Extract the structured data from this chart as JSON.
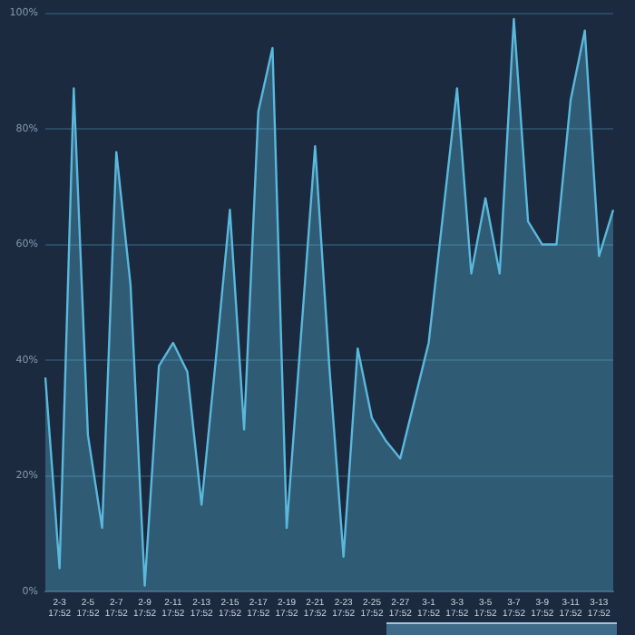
{
  "chart_data": {
    "type": "area",
    "categories": [
      null,
      "2-3\n17:52",
      null,
      "2-5\n17:52",
      null,
      "2-7\n17:52",
      null,
      "2-9\n17:52",
      null,
      "2-11\n17:52",
      null,
      "2-13\n17:52",
      null,
      "2-15\n17:52",
      null,
      "2-17\n17:52",
      null,
      "2-19\n17:52",
      null,
      "2-21\n17:52",
      null,
      "2-23\n17:52",
      null,
      "2-25\n17:52",
      null,
      "2-27\n17:52",
      null,
      "3-1\n17:52",
      null,
      "3-3\n17:52",
      null,
      "3-5\n17:52",
      null,
      "3-7\n17:52",
      null,
      "3-9\n17:52",
      null,
      "3-11\n17:52",
      null,
      "3-13\n17:52",
      null
    ],
    "series": [
      {
        "color": "#5ab8dc",
        "values": [
          37,
          4,
          87,
          27,
          11,
          76,
          53,
          1,
          39,
          43,
          38,
          15,
          40,
          66,
          28,
          83,
          94,
          11,
          44,
          77,
          39,
          6,
          42,
          30,
          26,
          23,
          33,
          43,
          65,
          87,
          55,
          68,
          55,
          99,
          64,
          60,
          60,
          85,
          97,
          58,
          66
        ]
      }
    ],
    "ylim": [
      0,
      100
    ],
    "yticks": [
      {
        "value": 0,
        "label": "0%"
      },
      {
        "value": 20,
        "label": "20%"
      },
      {
        "value": 40,
        "label": "40%"
      },
      {
        "value": 60,
        "label": "60%"
      },
      {
        "value": 80,
        "label": "80%"
      },
      {
        "value": 100,
        "label": "100%"
      }
    ],
    "grid": "y",
    "legend": false,
    "marker": "none",
    "line_style": "solid"
  }
}
